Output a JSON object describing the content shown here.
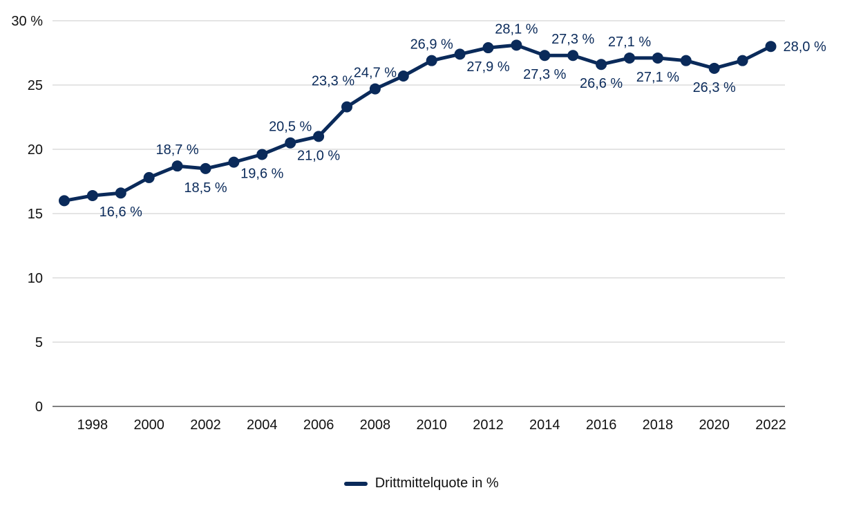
{
  "chart_data": {
    "type": "line",
    "title": "",
    "xlabel": "",
    "ylabel": "",
    "ylim": [
      0,
      30
    ],
    "xlim": [
      1997,
      2022
    ],
    "y_ticks": [
      {
        "value": 0,
        "label": "0"
      },
      {
        "value": 5,
        "label": "5"
      },
      {
        "value": 10,
        "label": "10"
      },
      {
        "value": 15,
        "label": "15"
      },
      {
        "value": 20,
        "label": "20"
      },
      {
        "value": 25,
        "label": "25"
      },
      {
        "value": 30,
        "label": "30 %"
      }
    ],
    "x_ticks": [
      1998,
      2000,
      2002,
      2004,
      2006,
      2008,
      2010,
      2012,
      2014,
      2016,
      2018,
      2020,
      2022
    ],
    "grid": true,
    "legend_position": "bottom",
    "series": [
      {
        "name": "Drittmittelquote in %",
        "color": "#0a2a5a",
        "x": [
          1997,
          1998,
          1999,
          2000,
          2001,
          2002,
          2003,
          2004,
          2005,
          2006,
          2007,
          2008,
          2009,
          2010,
          2011,
          2012,
          2013,
          2014,
          2015,
          2016,
          2017,
          2018,
          2019,
          2020,
          2021,
          2022
        ],
        "values": [
          16.0,
          16.4,
          16.6,
          17.8,
          18.7,
          18.5,
          19.0,
          19.6,
          20.5,
          21.0,
          23.3,
          24.7,
          25.7,
          26.9,
          27.4,
          27.9,
          28.1,
          27.3,
          27.3,
          26.6,
          27.1,
          27.1,
          26.9,
          26.3,
          26.9,
          28.0
        ]
      }
    ],
    "data_labels": [
      {
        "x": 1999,
        "text": "16,6 %",
        "pos": "below"
      },
      {
        "x": 2001,
        "text": "18,7 %",
        "pos": "above"
      },
      {
        "x": 2002,
        "text": "18,5 %",
        "pos": "below"
      },
      {
        "x": 2004,
        "text": "19,6 %",
        "pos": "below"
      },
      {
        "x": 2005,
        "text": "20,5 %",
        "pos": "above"
      },
      {
        "x": 2006,
        "text": "21,0 %",
        "pos": "below"
      },
      {
        "x": 2007,
        "text": "23,3 %",
        "pos": "above-left"
      },
      {
        "x": 2008,
        "text": "24,7 %",
        "pos": "above"
      },
      {
        "x": 2010,
        "text": "26,9 %",
        "pos": "above"
      },
      {
        "x": 2012,
        "text": "27,9 %",
        "pos": "below"
      },
      {
        "x": 2013,
        "text": "28,1 %",
        "pos": "above"
      },
      {
        "x": 2014,
        "text": "27,3 %",
        "pos": "below"
      },
      {
        "x": 2015,
        "text": "27,3 %",
        "pos": "above"
      },
      {
        "x": 2016,
        "text": "26,6 %",
        "pos": "below"
      },
      {
        "x": 2017,
        "text": "27,1 %",
        "pos": "above"
      },
      {
        "x": 2018,
        "text": "27,1 %",
        "pos": "below"
      },
      {
        "x": 2020,
        "text": "26,3 %",
        "pos": "below"
      },
      {
        "x": 2022,
        "text": "28,0 %",
        "pos": "right"
      }
    ]
  },
  "legend": {
    "label": "Drittmittelquote in %",
    "color": "#0a2a5a"
  }
}
